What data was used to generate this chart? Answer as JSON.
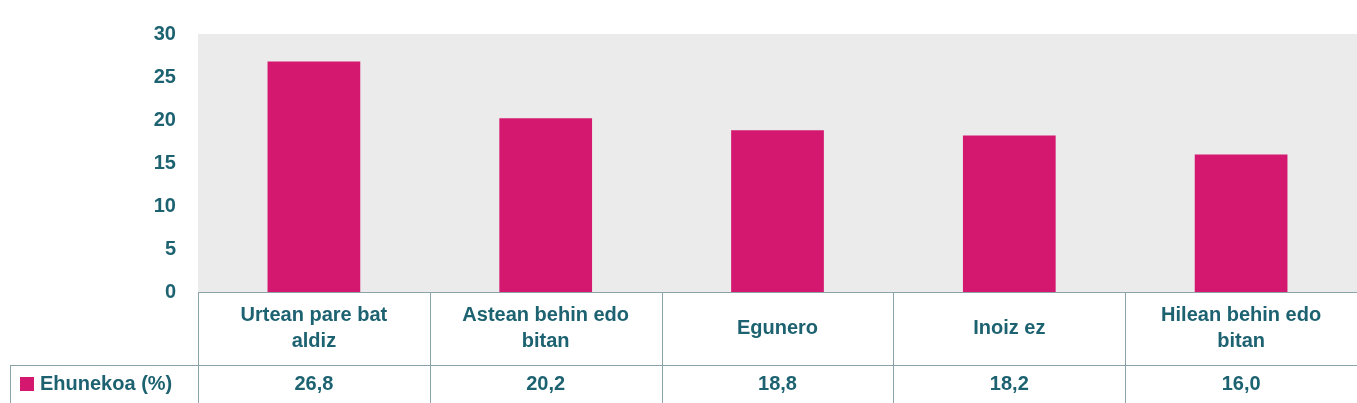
{
  "chart_data": {
    "type": "bar",
    "categories": [
      "Urtean pare bat aldiz",
      "Astean behin edo bitan",
      "Egunero",
      "Inoiz ez",
      "Hilean behin edo bitan"
    ],
    "series": [
      {
        "name": "Ehunekoa (%)",
        "color": "#d4186f",
        "values": [
          26.8,
          20.2,
          18.8,
          18.2,
          16.0
        ],
        "value_labels": [
          "26,8",
          "20,2",
          "18,8",
          "18,2",
          "16,0"
        ]
      }
    ],
    "ylim": [
      0,
      30
    ],
    "yticks": [
      0,
      5,
      10,
      15,
      20,
      25,
      30
    ],
    "legend": "bottom left"
  }
}
